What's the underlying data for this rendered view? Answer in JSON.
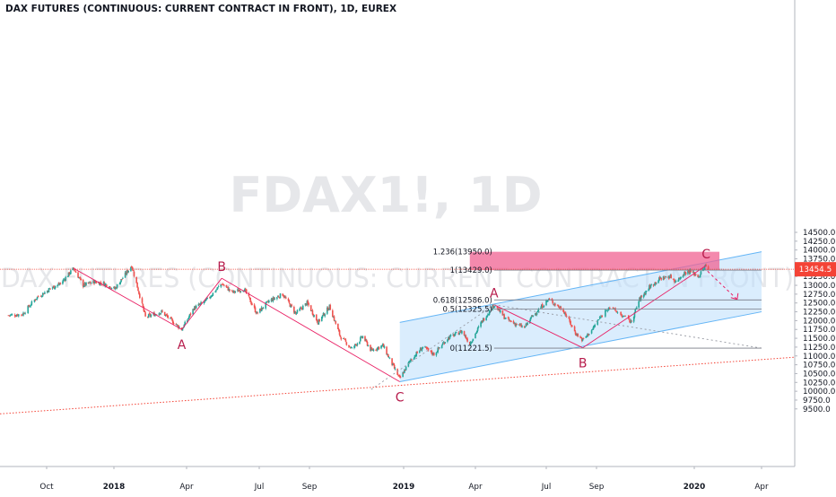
{
  "chart_data": {
    "type": "candlestick",
    "title": "DAX FUTURES (CONTINUOUS: CURRENT CONTRACT IN FRONT), 1D, EUREX",
    "watermark_symbol": "FDAX1!, 1D",
    "watermark_name": "DAX FUTURES (CONTINUOUS: CURRENT CONTRACT IN FRONT)",
    "x_axis": {
      "ticks": [
        "Oct",
        "2018",
        "Apr",
        "Jul",
        "Sep",
        "2019",
        "Apr",
        "Jul",
        "Sep",
        "2020",
        "Apr"
      ],
      "bold_ticks": [
        "2018",
        "2019",
        "2020"
      ]
    },
    "y_axis": {
      "range": [
        9300,
        14550
      ],
      "ticks": [
        9500,
        9750,
        10000,
        10250,
        10500,
        10750,
        11000,
        11250,
        11500,
        11750,
        12000,
        12250,
        12500,
        12750,
        13000,
        13250,
        13500,
        13750,
        14000,
        14250,
        14500
      ],
      "tick_labels": [
        "9500.0",
        "9750.0",
        "10000.0",
        "10250.0",
        "10500.0",
        "10750.0",
        "11000.0",
        "11250.0",
        "11500.0",
        "11750.0",
        "12000.0",
        "12250.0",
        "12500.0",
        "12750.0",
        "13000.0",
        "13250.0",
        "13500.0",
        "13750.0",
        "14000.0",
        "14250.0",
        "14500.0"
      ]
    },
    "last_price": 13454.5,
    "last_price_label": "13454.5",
    "price_path": [
      {
        "date": "2017-08-20",
        "price": 12150
      },
      {
        "date": "2017-09-05",
        "price": 12180
      },
      {
        "date": "2017-09-20",
        "price": 12650
      },
      {
        "date": "2017-10-05",
        "price": 12900
      },
      {
        "date": "2017-10-20",
        "price": 13050
      },
      {
        "date": "2017-11-07",
        "price": 13480
      },
      {
        "date": "2017-11-20",
        "price": 13000
      },
      {
        "date": "2017-12-05",
        "price": 13100
      },
      {
        "date": "2017-12-18",
        "price": 13050
      },
      {
        "date": "2018-01-02",
        "price": 12900
      },
      {
        "date": "2018-01-23",
        "price": 13560
      },
      {
        "date": "2018-02-09",
        "price": 12100
      },
      {
        "date": "2018-03-01",
        "price": 12250
      },
      {
        "date": "2018-03-26",
        "price": 11750
      },
      {
        "date": "2018-04-10",
        "price": 12350
      },
      {
        "date": "2018-04-25",
        "price": 12550
      },
      {
        "date": "2018-05-15",
        "price": 13050
      },
      {
        "date": "2018-05-28",
        "price": 12800
      },
      {
        "date": "2018-06-12",
        "price": 12900
      },
      {
        "date": "2018-06-28",
        "price": 12200
      },
      {
        "date": "2018-07-13",
        "price": 12550
      },
      {
        "date": "2018-07-30",
        "price": 12750
      },
      {
        "date": "2018-08-15",
        "price": 12200
      },
      {
        "date": "2018-08-29",
        "price": 12500
      },
      {
        "date": "2018-09-12",
        "price": 11950
      },
      {
        "date": "2018-09-27",
        "price": 12400
      },
      {
        "date": "2018-10-11",
        "price": 11550
      },
      {
        "date": "2018-10-26",
        "price": 11200
      },
      {
        "date": "2018-11-09",
        "price": 11550
      },
      {
        "date": "2018-11-20",
        "price": 11150
      },
      {
        "date": "2018-12-05",
        "price": 11300
      },
      {
        "date": "2018-12-14",
        "price": 10900
      },
      {
        "date": "2018-12-27",
        "price": 10350
      },
      {
        "date": "2019-01-10",
        "price": 10900
      },
      {
        "date": "2019-01-25",
        "price": 11250
      },
      {
        "date": "2019-02-08",
        "price": 11050
      },
      {
        "date": "2019-02-25",
        "price": 11500
      },
      {
        "date": "2019-03-15",
        "price": 11700
      },
      {
        "date": "2019-03-25",
        "price": 11350
      },
      {
        "date": "2019-04-10",
        "price": 12000
      },
      {
        "date": "2019-04-25",
        "price": 12450
      },
      {
        "date": "2019-05-10",
        "price": 12050
      },
      {
        "date": "2019-05-23",
        "price": 11900
      },
      {
        "date": "2019-06-03",
        "price": 11800
      },
      {
        "date": "2019-06-14",
        "price": 12150
      },
      {
        "date": "2019-07-04",
        "price": 12600
      },
      {
        "date": "2019-07-22",
        "price": 12300
      },
      {
        "date": "2019-08-06",
        "price": 11650
      },
      {
        "date": "2019-08-15",
        "price": 11450
      },
      {
        "date": "2019-08-27",
        "price": 11750
      },
      {
        "date": "2019-09-12",
        "price": 12400
      },
      {
        "date": "2019-10-03",
        "price": 11950
      },
      {
        "date": "2019-10-15",
        "price": 12600
      },
      {
        "date": "2019-10-29",
        "price": 12950
      },
      {
        "date": "2019-11-14",
        "price": 13200
      },
      {
        "date": "2019-11-28",
        "price": 13250
      },
      {
        "date": "2019-12-06",
        "price": 13100
      },
      {
        "date": "2019-12-17",
        "price": 13350
      },
      {
        "date": "2019-12-26",
        "price": 13400
      },
      {
        "date": "2020-01-07",
        "price": 13250
      },
      {
        "date": "2020-01-16",
        "price": 13550
      },
      {
        "date": "2020-01-20",
        "price": 13454.5
      }
    ],
    "fibonacci": {
      "levels": [
        {
          "label": "1.236(13950.0)",
          "value": 13950.0
        },
        {
          "label": "1(13429.0)",
          "value": 13429.0
        },
        {
          "label": "0.618(12586.0)",
          "value": 12586.0
        },
        {
          "label": "0.5(12325.5)",
          "value": 12325.5
        },
        {
          "label": "0(11221.5)",
          "value": 11221.5
        }
      ],
      "target_zone": [
        13429.0,
        13950.0
      ]
    },
    "channel": {
      "lower_line": [
        {
          "date": "2018-12-27",
          "price": 10270
        },
        {
          "date": "2020-04-01",
          "price": 12250
        }
      ],
      "upper_line": [
        {
          "date": "2018-12-27",
          "price": 11950
        },
        {
          "date": "2020-04-01",
          "price": 13950
        }
      ]
    },
    "wave_labels": [
      {
        "text": "A",
        "date": "2018-03-26",
        "price": 11750,
        "position": "below"
      },
      {
        "text": "B",
        "date": "2018-05-15",
        "price": 13200,
        "position": "above"
      },
      {
        "text": "C",
        "date": "2018-12-27",
        "price": 10270,
        "position": "below"
      },
      {
        "text": "A",
        "date": "2019-04-25",
        "price": 12450,
        "position": "above"
      },
      {
        "text": "B",
        "date": "2019-08-15",
        "price": 11230,
        "position": "below"
      },
      {
        "text": "C",
        "date": "2020-01-17",
        "price": 13560,
        "position": "above"
      }
    ],
    "colors": {
      "up": "#26a69a",
      "down": "#ef5350",
      "wave_lines": "#e91e63",
      "channel_fill": "#bbdefb",
      "channel_line": "#64b5f6",
      "zone_fill": "#f06292",
      "fib_line": "#787b86",
      "price_line": "#f44336",
      "axis_text": "#131722",
      "watermark": "#e6e7ea"
    },
    "grid": false
  }
}
